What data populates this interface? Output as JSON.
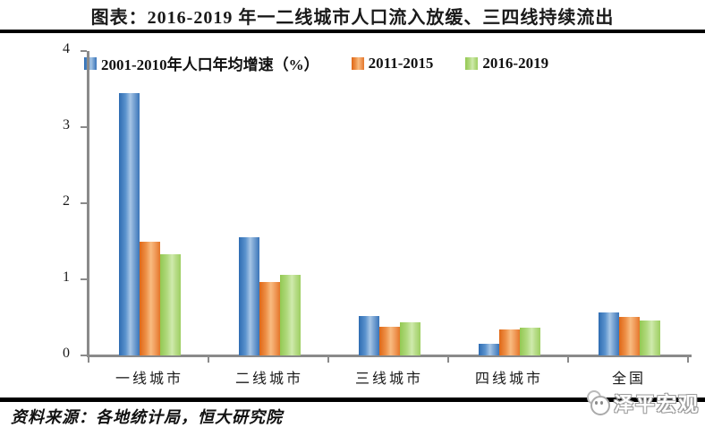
{
  "title": "图表：2016-2019 年一二线城市人口流入放缓、三四线持续流出",
  "source": "资料来源：各地统计局，恒大研究院",
  "logo": {
    "text": "泽平宏观",
    "icon": "panda-mascot-icon"
  },
  "colors": {
    "series_blue": "#4f81bd",
    "series_orange": "#ed7d31",
    "series_green": "#9bbb59",
    "axis_gray": "#8a8a8a",
    "rule_black": "#000000",
    "background": "#ffffff"
  },
  "chart_data": {
    "type": "bar",
    "categories": [
      "一线城市",
      "二线城市",
      "三线城市",
      "四线城市",
      "全国"
    ],
    "series": [
      {
        "name": "2001-2010年人口年均增速（%）",
        "color": "#4f81bd",
        "values": [
          3.45,
          1.55,
          0.52,
          0.15,
          0.57
        ]
      },
      {
        "name": "2011-2015",
        "color": "#ed7d31",
        "values": [
          1.5,
          0.97,
          0.38,
          0.34,
          0.51
        ]
      },
      {
        "name": "2016-2019",
        "color": "#9bbb59",
        "values": [
          1.33,
          1.06,
          0.43,
          0.36,
          0.46
        ]
      }
    ],
    "ylim": [
      0,
      4
    ],
    "yticks": [
      0,
      1,
      2,
      3,
      4
    ],
    "grid": false,
    "legend_position": "top-left",
    "xlabel": "",
    "ylabel": ""
  }
}
